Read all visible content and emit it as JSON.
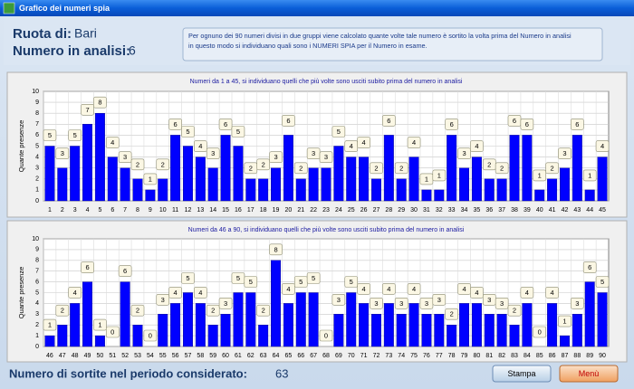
{
  "window": {
    "title": "Grafico dei numeri spia"
  },
  "header": {
    "ruota_label": "Ruota di:",
    "ruota": "Bari",
    "numero_label": "Numero in analisi:",
    "numero": "6",
    "info_lines": [
      "Per  ognuno dei 90 numeri divisi in due gruppi viene calcolato quante volte tale numero è sortito la volta prima del Numero in analisi",
      "in questo modo si individuano quali sono i NUMERI SPIA per il Numero in esame."
    ]
  },
  "chart_data": [
    {
      "type": "bar",
      "title": "Numeri da 1 a 45, si individuano quelli che più volte sono usciti subito prima del numero in analisi",
      "y_label": "Quante presenze",
      "categories": [
        "1",
        "2",
        "3",
        "4",
        "5",
        "6",
        "7",
        "8",
        "9",
        "10",
        "11",
        "12",
        "13",
        "14",
        "15",
        "16",
        "17",
        "18",
        "19",
        "20",
        "21",
        "22",
        "23",
        "24",
        "25",
        "26",
        "27",
        "28",
        "29",
        "30",
        "31",
        "32",
        "33",
        "34",
        "35",
        "36",
        "37",
        "38",
        "39",
        "40",
        "41",
        "42",
        "43",
        "44",
        "45"
      ],
      "values": [
        5,
        3,
        5,
        7,
        8,
        4,
        3,
        2,
        1,
        2,
        6,
        5,
        4,
        3,
        6,
        5,
        2,
        2,
        3,
        6,
        2,
        3,
        3,
        5,
        4,
        4,
        2,
        6,
        2,
        4,
        1,
        1,
        6,
        3,
        4,
        2,
        2,
        6,
        6,
        1,
        2,
        3,
        6,
        1,
        4
      ],
      "color": "#0000ff",
      "ylim": [
        0,
        10
      ],
      "yticks": [
        0,
        1,
        2,
        3,
        4,
        5,
        6,
        7,
        8,
        9,
        10
      ],
      "grid": true
    },
    {
      "type": "bar",
      "title": "Numeri da 46 a 90, si individuano quelli che più volte sono usciti subito prima del numero in analisi",
      "y_label": "Quante presenze",
      "categories": [
        "46",
        "47",
        "48",
        "49",
        "50",
        "51",
        "52",
        "53",
        "54",
        "55",
        "56",
        "57",
        "58",
        "59",
        "60",
        "61",
        "62",
        "63",
        "64",
        "65",
        "66",
        "67",
        "68",
        "69",
        "70",
        "71",
        "72",
        "73",
        "74",
        "75",
        "76",
        "77",
        "78",
        "79",
        "80",
        "81",
        "82",
        "83",
        "84",
        "85",
        "86",
        "87",
        "88",
        "89",
        "90"
      ],
      "values": [
        1,
        2,
        4,
        6,
        1,
        0,
        6,
        2,
        0,
        3,
        4,
        5,
        4,
        2,
        3,
        5,
        5,
        2,
        8,
        4,
        5,
        5,
        0,
        3,
        5,
        4,
        3,
        4,
        3,
        4,
        3,
        3,
        2,
        4,
        4,
        3,
        3,
        2,
        4,
        0,
        4,
        1,
        3,
        6,
        5
      ],
      "color": "#0000ff",
      "ylim": [
        0,
        10
      ],
      "yticks": [
        0,
        1,
        2,
        3,
        4,
        5,
        6,
        7,
        8,
        9,
        10
      ],
      "grid": true
    }
  ],
  "footer": {
    "label": "Numero di sortite nel periodo considerato:",
    "value": "63",
    "buttons": [
      "Stampa",
      "Menù"
    ]
  }
}
